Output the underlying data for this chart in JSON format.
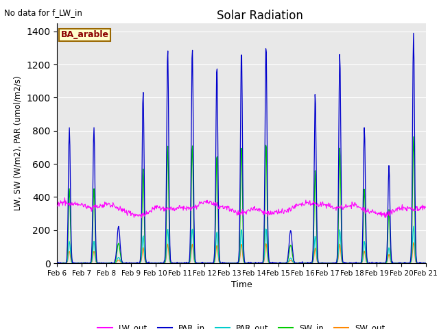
{
  "title": "Solar Radiation",
  "top_left_text": "No data for f_LW_in",
  "legend_label": "BA_arable",
  "ylabel": "LW, SW (W/m2), PAR (umol/m2/s)",
  "xlabel": "Time",
  "ylim": [
    0,
    1450
  ],
  "n_days": 15,
  "background_color": "#e8e8e8",
  "colors": {
    "LW_out": "#ff00ff",
    "PAR_in": "#0000cc",
    "PAR_out": "#00cccc",
    "SW_in": "#00cc00",
    "SW_out": "#ff8800"
  },
  "legend_box_color": "#ffffcc",
  "legend_box_edge": "#996600",
  "par_peaks": [
    820,
    820,
    220,
    1040,
    1300,
    1310,
    1200,
    1300,
    1330,
    200,
    1030,
    1270,
    820,
    590,
    1390
  ],
  "par_widths": [
    0.04,
    0.04,
    0.06,
    0.04,
    0.04,
    0.04,
    0.04,
    0.04,
    0.04,
    0.06,
    0.04,
    0.04,
    0.04,
    0.04,
    0.04
  ],
  "sw_in_ratio": 0.55,
  "par_out_ratio": 0.16,
  "sw_out_ratio": 0.09,
  "lw_out_base": 340,
  "lw_out_amplitude": 25,
  "yticks": [
    0,
    200,
    400,
    600,
    800,
    1000,
    1200,
    1400
  ],
  "tick_labels": [
    "Feb 6",
    "Feb 7",
    "Feb 8",
    "Feb 9",
    "Feb 10",
    "Feb 11",
    "Feb 12",
    "Feb 13",
    "Feb 14",
    "Feb 15",
    "Feb 16",
    "Feb 17",
    "Feb 18",
    "Feb 19",
    "Feb 20",
    "Feb 21"
  ]
}
